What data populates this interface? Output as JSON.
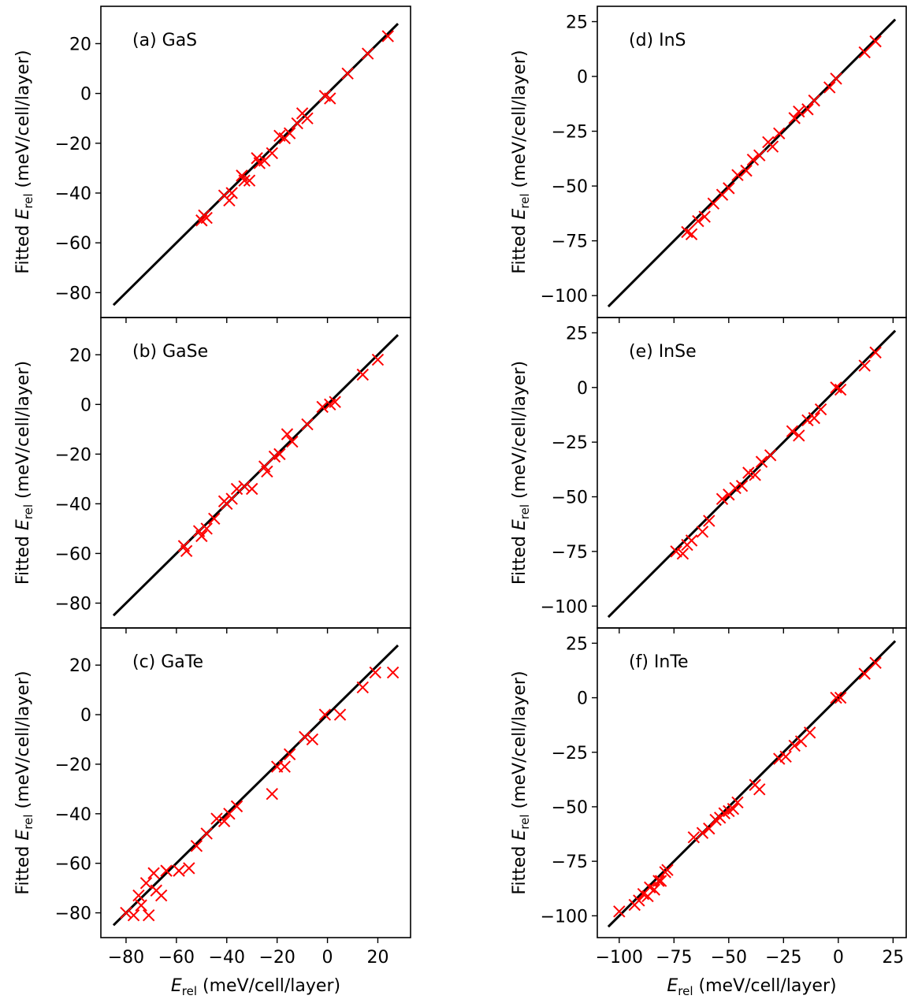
{
  "figure": {
    "ylabel_prefix": "Fitted ",
    "ylabel_var": "E",
    "ylabel_sub": "rel",
    "ylabel_suffix": " (meV/cell/layer)",
    "xlabel_var": "E",
    "xlabel_sub": "rel",
    "xlabel_suffix": " (meV/cell/layer)",
    "point_color": "#ff0000",
    "line_color": "#000000"
  },
  "chart_data": [
    {
      "type": "scatter",
      "title": "(a) GaS",
      "xlim": [
        -90,
        33
      ],
      "ylim": [
        -90,
        35
      ],
      "xticks": [
        -80,
        -60,
        -40,
        -20,
        0,
        20
      ],
      "yticks": [
        -80,
        -60,
        -40,
        -20,
        0,
        20
      ],
      "xtick_labels": [
        "−80",
        "−60",
        "−40",
        "−20",
        "0",
        "20"
      ],
      "ytick_labels": [
        "−80",
        "−60",
        "−40",
        "−20",
        "0",
        "20"
      ],
      "line": {
        "x": [
          -85,
          28
        ],
        "y": [
          -85,
          28
        ]
      },
      "points": {
        "x": [
          -50,
          -49,
          -48,
          -41,
          -39,
          -38,
          -34,
          -33,
          -31,
          -28,
          -27,
          -25,
          -22,
          -19,
          -17,
          -15,
          -12,
          -10,
          -8,
          -1,
          1,
          8,
          16,
          24
        ],
        "y": [
          -51,
          -49,
          -50,
          -41,
          -43,
          -40,
          -33,
          -35,
          -35,
          -26,
          -28,
          -27,
          -24,
          -17,
          -18,
          -16,
          -12,
          -8,
          -10,
          -1,
          -2,
          8,
          16,
          23
        ]
      }
    },
    {
      "type": "scatter",
      "title": "(b) GaSe",
      "xlim": [
        -90,
        33
      ],
      "ylim": [
        -90,
        35
      ],
      "xticks": [
        -80,
        -60,
        -40,
        -20,
        0,
        20
      ],
      "yticks": [
        -80,
        -60,
        -40,
        -20,
        0,
        20
      ],
      "xtick_labels": [
        "−80",
        "−60",
        "−40",
        "−20",
        "0",
        "20"
      ],
      "ytick_labels": [
        "−80",
        "−60",
        "−40",
        "−20",
        "0",
        "20"
      ],
      "line": {
        "x": [
          -85,
          28
        ],
        "y": [
          -85,
          28
        ]
      },
      "points": {
        "x": [
          -57,
          -56,
          -51,
          -50,
          -48,
          -45,
          -41,
          -40,
          -38,
          -36,
          -33,
          -30,
          -25,
          -24,
          -21,
          -19,
          -16,
          -14,
          -8,
          -2,
          1,
          3,
          14,
          20
        ],
        "y": [
          -57,
          -59,
          -51,
          -53,
          -50,
          -46,
          -39,
          -40,
          -38,
          -34,
          -33,
          -34,
          -25,
          -27,
          -21,
          -20,
          -12,
          -15,
          -8,
          -1,
          0,
          1,
          12,
          18
        ]
      }
    },
    {
      "type": "scatter",
      "title": "(c) GaTe",
      "xlim": [
        -90,
        33
      ],
      "ylim": [
        -90,
        35
      ],
      "xticks": [
        -80,
        -60,
        -40,
        -20,
        0,
        20
      ],
      "yticks": [
        -80,
        -60,
        -40,
        -20,
        0,
        20
      ],
      "xtick_labels": [
        "−80",
        "−60",
        "−40",
        "−20",
        "0",
        "20"
      ],
      "ytick_labels": [
        "−80",
        "−60",
        "−40",
        "−20",
        "0",
        "20"
      ],
      "line": {
        "x": [
          -85,
          28
        ],
        "y": [
          -85,
          28
        ]
      },
      "points": {
        "x": [
          -80,
          -77,
          -75,
          -74,
          -72,
          -71,
          -69,
          -68,
          -66,
          -64,
          -59,
          -55,
          -52,
          -48,
          -44,
          -41,
          -39,
          -36,
          -22,
          -20,
          -17,
          -15,
          -9,
          -6,
          -1,
          5,
          14,
          19,
          26
        ],
        "y": [
          -80,
          -81,
          -73,
          -77,
          -68,
          -81,
          -64,
          -71,
          -73,
          -63,
          -63,
          -62,
          -53,
          -48,
          -42,
          -43,
          -40,
          -37,
          -32,
          -21,
          -21,
          -16,
          -9,
          -10,
          0,
          0,
          11,
          17,
          17
        ]
      }
    },
    {
      "type": "scatter",
      "title": "(d) InS",
      "xlim": [
        -110,
        31
      ],
      "ylim": [
        -110,
        32
      ],
      "xticks": [
        -100,
        -75,
        -50,
        -25,
        0,
        25
      ],
      "yticks": [
        -100,
        -75,
        -50,
        -25,
        0,
        25
      ],
      "xtick_labels": [
        "−100",
        "−75",
        "−50",
        "−25",
        "0",
        "25"
      ],
      "ytick_labels": [
        "−100",
        "−75",
        "−50",
        "−25",
        "0",
        "25"
      ],
      "line": {
        "x": [
          -105,
          26
        ],
        "y": [
          -105,
          26
        ]
      },
      "points": {
        "x": [
          -69,
          -67,
          -64,
          -61,
          -57,
          -53,
          -50,
          -46,
          -42,
          -39,
          -36,
          -32,
          -30,
          -27,
          -20,
          -18,
          -14,
          -11,
          -4,
          -1,
          12,
          17
        ],
        "y": [
          -71,
          -72,
          -66,
          -64,
          -58,
          -54,
          -51,
          -45,
          -43,
          -38,
          -36,
          -30,
          -32,
          -26,
          -19,
          -16,
          -15,
          -11,
          -5,
          -1,
          11,
          16
        ]
      }
    },
    {
      "type": "scatter",
      "title": "(e) InSe",
      "xlim": [
        -110,
        31
      ],
      "ylim": [
        -110,
        32
      ],
      "xticks": [
        -100,
        -75,
        -50,
        -25,
        0,
        25
      ],
      "yticks": [
        -100,
        -75,
        -50,
        -25,
        0,
        25
      ],
      "xtick_labels": [
        "−100",
        "−75",
        "−50",
        "−25",
        "0",
        "25"
      ],
      "ytick_labels": [
        "−100",
        "−75",
        "−50",
        "−25",
        "0",
        "25"
      ],
      "line": {
        "x": [
          -105,
          26
        ],
        "y": [
          -105,
          26
        ]
      },
      "points": {
        "x": [
          -74,
          -71,
          -69,
          -67,
          -62,
          -59,
          -53,
          -50,
          -47,
          -44,
          -41,
          -38,
          -35,
          -31,
          -21,
          -18,
          -14,
          -11,
          -8,
          -1,
          1,
          12,
          17
        ],
        "y": [
          -75,
          -76,
          -72,
          -70,
          -66,
          -61,
          -51,
          -49,
          -46,
          -45,
          -39,
          -40,
          -34,
          -31,
          -20,
          -22,
          -15,
          -14,
          -10,
          0,
          -1,
          10,
          16
        ]
      }
    },
    {
      "type": "scatter",
      "title": "(f) InTe",
      "xlim": [
        -110,
        31
      ],
      "ylim": [
        -110,
        32
      ],
      "xticks": [
        -100,
        -75,
        -50,
        -25,
        0,
        25
      ],
      "yticks": [
        -100,
        -75,
        -50,
        -25,
        0,
        25
      ],
      "xtick_labels": [
        "−100",
        "−75",
        "−50",
        "−25",
        "0",
        "25"
      ],
      "ytick_labels": [
        "−100",
        "−75",
        "−50",
        "−25",
        "0",
        "25"
      ],
      "line": {
        "x": [
          -105,
          26
        ],
        "y": [
          -105,
          26
        ]
      },
      "points": {
        "x": [
          -100,
          -93,
          -91,
          -89,
          -87,
          -86,
          -84,
          -82,
          -81,
          -79,
          -78,
          -66,
          -62,
          -59,
          -56,
          -54,
          -52,
          -50,
          -48,
          -46,
          -38,
          -36,
          -27,
          -24,
          -20,
          -17,
          -13,
          -1,
          1,
          12,
          17
        ],
        "y": [
          -98,
          -95,
          -93,
          -90,
          -91,
          -87,
          -88,
          -84,
          -84,
          -80,
          -79,
          -64,
          -62,
          -60,
          -56,
          -55,
          -53,
          -52,
          -51,
          -48,
          -40,
          -42,
          -28,
          -27,
          -22,
          -20,
          -16,
          0,
          0,
          11,
          16
        ]
      }
    }
  ]
}
